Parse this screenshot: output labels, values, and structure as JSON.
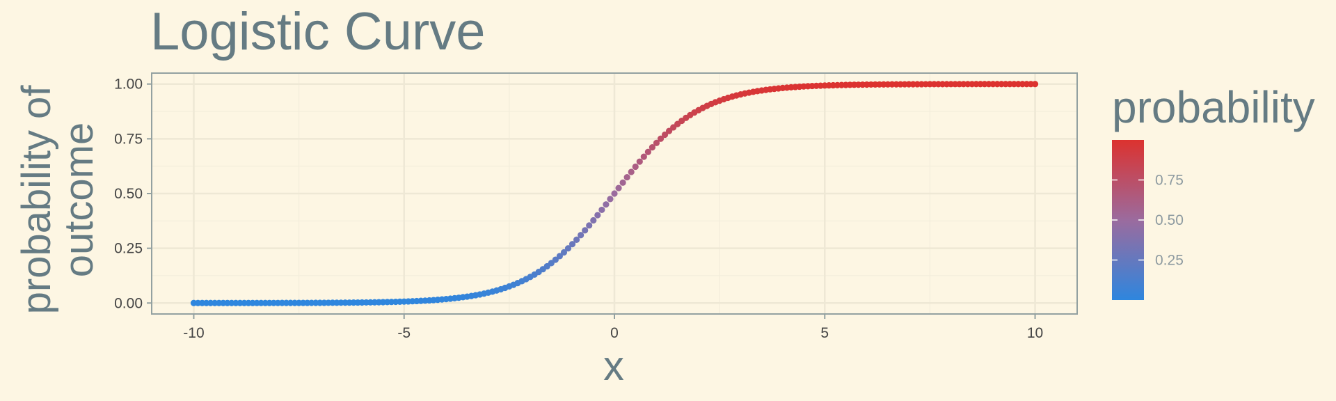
{
  "chart_data": {
    "type": "scatter",
    "title": "Logistic Curve",
    "xlabel": "x",
    "ylabel_lines": [
      "probability of",
      "outcome"
    ],
    "xlim": [
      -11,
      11
    ],
    "ylim": [
      -0.05,
      1.05
    ],
    "x_ticks": [
      -10,
      -5,
      0,
      5,
      10
    ],
    "x_tick_labels": [
      "-10",
      "-5",
      "0",
      "5",
      "10"
    ],
    "y_ticks": [
      0,
      0.25,
      0.5,
      0.75,
      1
    ],
    "y_tick_labels": [
      "0.00",
      "0.25",
      "0.50",
      "0.75",
      "1.00"
    ],
    "grid": true,
    "function": "y = 1 / (1 + exp(-x))",
    "x_range": [
      -10,
      10
    ],
    "x_step": 0.1,
    "colormap": {
      "low": "#2e86de",
      "mid": "#9b6b9e",
      "high": "#dc322f"
    },
    "legend": {
      "title": "probability",
      "placement": "right",
      "breaks": [
        0.25,
        0.5,
        0.75
      ],
      "break_labels": [
        "0.25",
        "0.50",
        "0.75"
      ],
      "range": [
        0,
        1
      ]
    }
  },
  "colors": {
    "background": "#fdf6e3",
    "panel_border": "#93a1a1",
    "grid_major": "#eee8d5",
    "grid_minor": "#f3eddb",
    "text": "#657b83"
  }
}
